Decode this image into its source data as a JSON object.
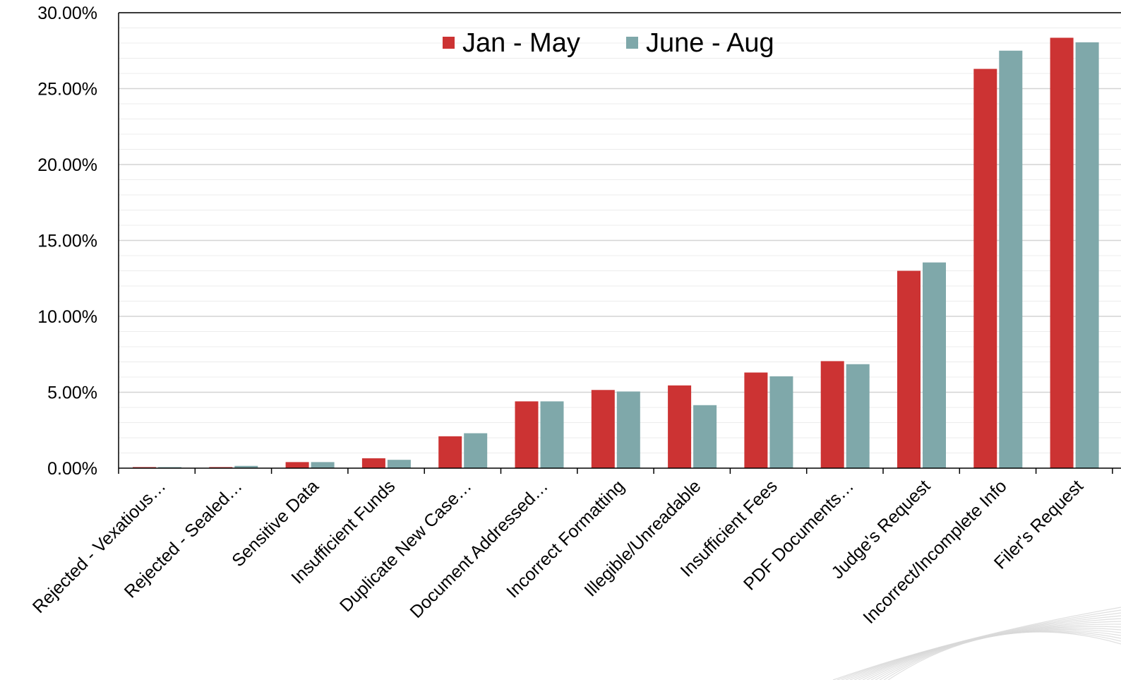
{
  "chart_data": {
    "type": "bar",
    "title": "",
    "xlabel": "",
    "ylabel": "",
    "ylim": [
      0,
      0.3
    ],
    "y_ticks": [
      "0.00%",
      "5.00%",
      "10.00%",
      "15.00%",
      "20.00%",
      "25.00%",
      "30.00%"
    ],
    "grid": "horizontal major and minor lines",
    "legend_position": "top-center",
    "categories": [
      "Rejected - Vexatious…",
      "Rejected - Sealed…",
      "Sensitive Data",
      "Insufficient Funds",
      "Duplicate New Case…",
      "Document Addressed…",
      "Incorrect Formatting",
      "Illegible/Unreadable",
      "Insufficient Fees",
      "PDF Documents…",
      "Judge's Request",
      "Incorrect/Incomplete Info",
      "Filer's Request"
    ],
    "series": [
      {
        "name": "Jan - May",
        "color": "#cc3333",
        "values": [
          0.0,
          0.0,
          0.004,
          0.0065,
          0.021,
          0.044,
          0.0515,
          0.0545,
          0.063,
          0.0705,
          0.13,
          0.263,
          0.2835
        ]
      },
      {
        "name": "June - Aug",
        "color": "#7fa8aa",
        "values": [
          0.0005,
          0.0015,
          0.004,
          0.0055,
          0.023,
          0.044,
          0.0505,
          0.0415,
          0.0605,
          0.0685,
          0.1355,
          0.275,
          0.2805
        ]
      }
    ]
  }
}
